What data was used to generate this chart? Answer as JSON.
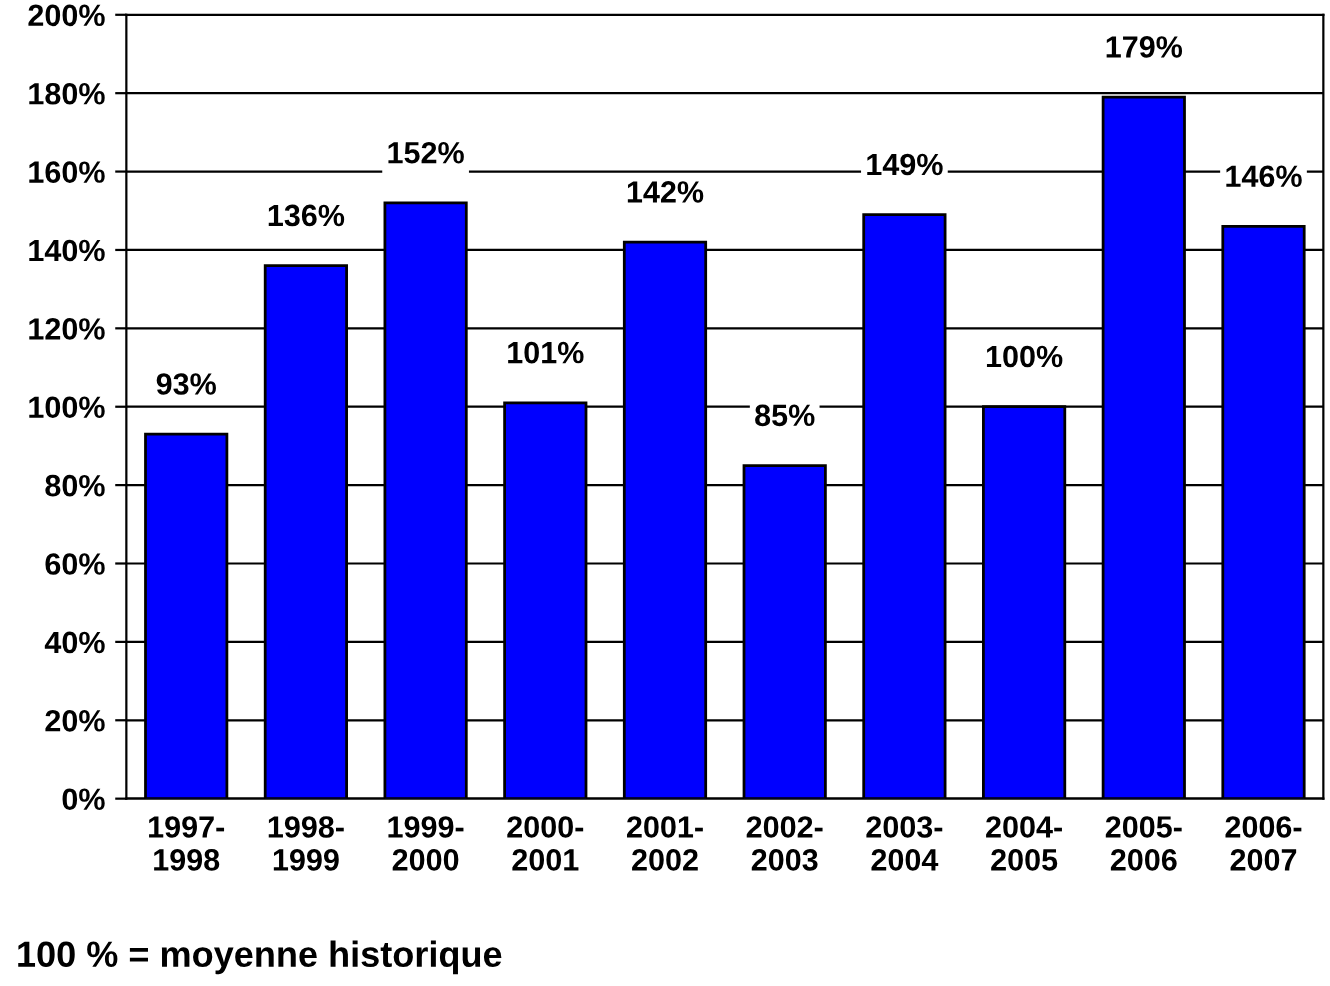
{
  "chart_data": {
    "type": "bar",
    "categories": [
      "1997-\n1998",
      "1998-\n1999",
      "1999-\n2000",
      "2000-\n2001",
      "2001-\n2002",
      "2002-\n2003",
      "2003-\n2004",
      "2004-\n2005",
      "2005-\n2006",
      "2006-\n2007"
    ],
    "values": [
      93,
      136,
      152,
      101,
      142,
      85,
      149,
      100,
      179,
      146
    ],
    "value_labels": [
      "93%",
      "136%",
      "152%",
      "101%",
      "142%",
      "85%",
      "149%",
      "100%",
      "179%",
      "146%"
    ],
    "color": "#0000ff",
    "ylim": [
      0,
      200
    ],
    "yticks": [
      {
        "value": 0,
        "label": "0%"
      },
      {
        "value": 20,
        "label": "20%"
      },
      {
        "value": 40,
        "label": "40%"
      },
      {
        "value": 60,
        "label": "60%"
      },
      {
        "value": 80,
        "label": "80%"
      },
      {
        "value": 100,
        "label": "100%"
      },
      {
        "value": 120,
        "label": "120%"
      },
      {
        "value": 140,
        "label": "140%"
      },
      {
        "value": 160,
        "label": "160%"
      },
      {
        "value": 180,
        "label": "180%"
      },
      {
        "value": 200,
        "label": "200%"
      }
    ],
    "grid": "y",
    "annotations": [
      "100 % = moyenne historique"
    ]
  }
}
